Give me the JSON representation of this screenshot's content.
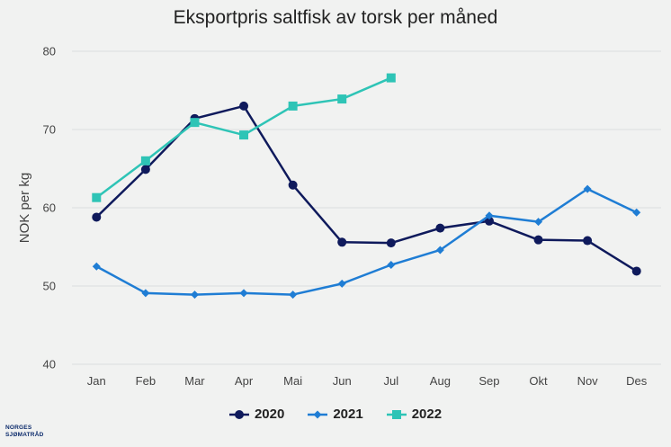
{
  "logo": {
    "line1": "NORGES",
    "line2": "SJØMATRÅD"
  },
  "chart_data": {
    "type": "line",
    "title": "Eksportpris saltfisk av torsk per måned",
    "xlabel": "",
    "ylabel": "NOK per kg",
    "ylim": [
      40,
      80
    ],
    "yticks": [
      40,
      50,
      60,
      70,
      80
    ],
    "categories": [
      "Jan",
      "Feb",
      "Mar",
      "Apr",
      "Mai",
      "Jun",
      "Jul",
      "Aug",
      "Sep",
      "Okt",
      "Nov",
      "Des"
    ],
    "grid": "horizontal",
    "legend_position": "bottom",
    "series": [
      {
        "name": "2020",
        "color": "#0f1a5c",
        "marker": "circle",
        "values": [
          58.8,
          64.9,
          71.4,
          73.0,
          62.9,
          55.6,
          55.5,
          57.4,
          58.3,
          55.9,
          55.8,
          51.9
        ]
      },
      {
        "name": "2021",
        "color": "#1f7dd4",
        "marker": "diamond",
        "values": [
          52.5,
          49.1,
          48.9,
          49.1,
          48.9,
          50.3,
          52.7,
          54.6,
          59.0,
          58.2,
          62.4,
          59.4
        ]
      },
      {
        "name": "2022",
        "color": "#2ec4b6",
        "marker": "square",
        "values": [
          61.3,
          66.0,
          70.9,
          69.3,
          73.0,
          73.9,
          76.6,
          null,
          null,
          null,
          null,
          null
        ]
      }
    ]
  }
}
